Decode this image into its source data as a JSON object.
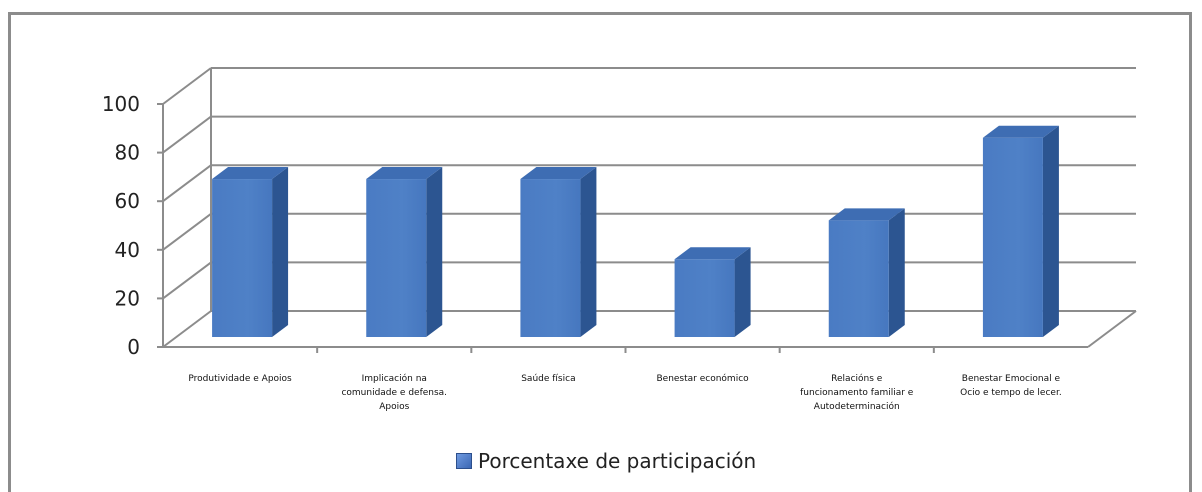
{
  "chart_data": {
    "type": "bar",
    "title": "",
    "xlabel": "",
    "ylabel": "",
    "categories": [
      [
        "Produtividade e Apoios"
      ],
      [
        "Implicación na",
        "comunidade e defensa.",
        "Apoios"
      ],
      [
        "Saúde física"
      ],
      [
        "Benestar económico"
      ],
      [
        "Relacións e",
        "funcionamento familiar e",
        "Autodeterminación"
      ],
      [
        "Benestar Emocional e",
        "Ocio e tempo de lecer."
      ]
    ],
    "series": [
      {
        "name": "Porcentaxe de participación",
        "values": [
          65,
          65,
          65,
          32,
          48,
          82
        ]
      }
    ],
    "ylim": [
      0,
      100
    ],
    "yticks": [
      "0",
      "20",
      "40",
      "60",
      "80",
      "100"
    ],
    "grid": true,
    "legend": "bottom",
    "colors": {
      "bar_front": "#4f81c7",
      "bar_side": "#2c5591",
      "bar_top": "#3e6db3",
      "grid": "#8c8c8c"
    }
  }
}
